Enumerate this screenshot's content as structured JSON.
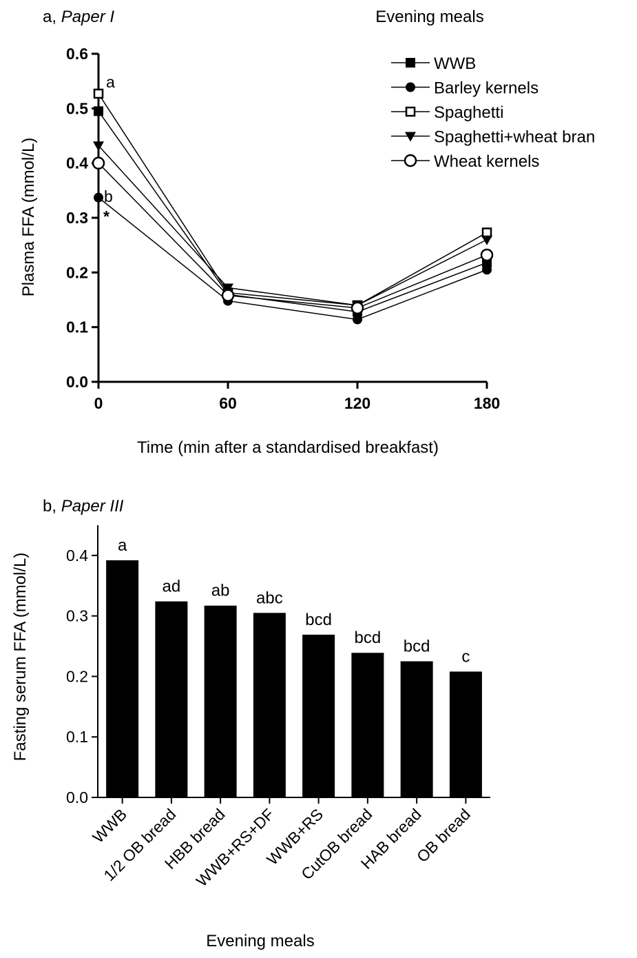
{
  "chart_data": [
    {
      "type": "line",
      "panel_label": "a, ",
      "panel_label_italic": "Paper I",
      "header_right": "Evening meals",
      "xlabel": "Time (min after a standardised breakfast)",
      "ylabel": "Plasma FFA (mmol/L)",
      "x": [
        0,
        60,
        120,
        180
      ],
      "xlim": [
        0,
        180
      ],
      "ylim": [
        0,
        0.6
      ],
      "xticks": [
        "0",
        "60",
        "120",
        "180"
      ],
      "yticks": [
        "0.0",
        "0.1",
        "0.2",
        "0.3",
        "0.4",
        "0.5",
        "0.6"
      ],
      "legend_position": "top-right",
      "series": [
        {
          "name": "WWB",
          "marker": "filled-square",
          "values": [
            0.495,
            0.16,
            0.128,
            0.218
          ]
        },
        {
          "name": "Barley kernels",
          "marker": "filled-circle",
          "values": [
            0.337,
            0.148,
            0.114,
            0.205
          ]
        },
        {
          "name": "Spaghetti",
          "marker": "open-square",
          "values": [
            0.527,
            0.163,
            0.14,
            0.273
          ]
        },
        {
          "name": "Spaghetti+wheat bran",
          "marker": "filled-triangle-down",
          "values": [
            0.432,
            0.172,
            0.14,
            0.26
          ]
        },
        {
          "name": "Wheat kernels",
          "marker": "open-circle",
          "values": [
            0.4,
            0.158,
            0.135,
            0.232
          ]
        }
      ],
      "annotations": [
        "a",
        "b",
        "*"
      ]
    },
    {
      "type": "bar",
      "panel_label": "b, ",
      "panel_label_italic": "Paper III",
      "xlabel": "Evening meals",
      "ylabel": "Fasting serum FFA (mmol/L)",
      "ylim": [
        0,
        0.45
      ],
      "yticks": [
        "0.0",
        "0.1",
        "0.2",
        "0.3",
        "0.4"
      ],
      "categories": [
        "WWB",
        "1/2 OB bread",
        "HBB bread",
        "WWB+RS+DF",
        "WWB+RS",
        "CutOB bread",
        "HAB bread",
        "OB bread"
      ],
      "values": [
        0.392,
        0.324,
        0.317,
        0.305,
        0.269,
        0.239,
        0.225,
        0.208
      ],
      "bar_labels": [
        "a",
        "ad",
        "ab",
        "abc",
        "bcd",
        "bcd",
        "bcd",
        "c"
      ],
      "bar_color": "#000000"
    }
  ]
}
